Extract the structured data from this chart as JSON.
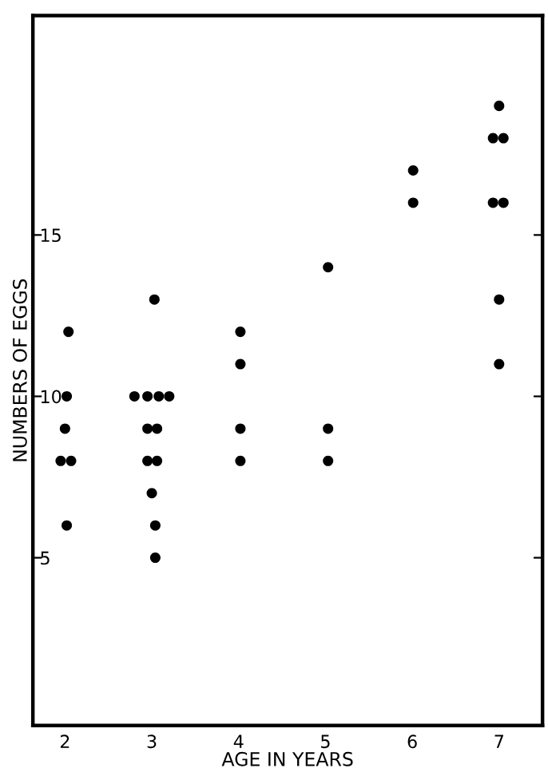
{
  "chart_data": {
    "type": "scatter",
    "xlabel": "AGE IN YEARS",
    "ylabel": "NUMBERS OF EGGS",
    "x": [
      2.04,
      2.02,
      2.0,
      1.95,
      2.07,
      2.02,
      3.03,
      2.8,
      2.95,
      3.08,
      3.2,
      2.95,
      3.06,
      2.95,
      3.06,
      3.0,
      3.04,
      3.04,
      4.02,
      4.02,
      4.02,
      4.02,
      5.03,
      5.03,
      5.03,
      6.01,
      6.01,
      7.0,
      6.93,
      7.05,
      6.93,
      7.05,
      7.0,
      7.0
    ],
    "values": [
      12,
      10,
      9,
      8,
      8,
      6,
      13,
      10,
      10,
      10,
      10,
      9,
      9,
      8,
      8,
      7,
      6,
      5,
      12,
      11,
      9,
      8,
      14,
      9,
      8,
      17,
      16,
      19,
      18,
      18,
      16,
      16,
      13,
      11
    ],
    "color": "#000000",
    "marker": "circle",
    "grid": false,
    "xlim": [
      1.63,
      7.5
    ],
    "ylim": [
      -0.2,
      21.8
    ],
    "xticks": [
      2,
      3,
      4,
      5,
      6,
      7
    ],
    "yticks": [
      5,
      10,
      15
    ]
  }
}
